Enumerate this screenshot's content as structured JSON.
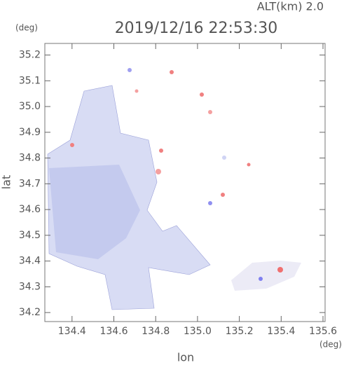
{
  "chart_data": {
    "type": "map",
    "title": "2019/12/16 22:53:30",
    "subtitle": "ALT(km) 2.0",
    "x_label": "lon",
    "y_label": "lat",
    "x_unit": "(deg)",
    "y_unit": "(deg)",
    "xlim": [
      134.27,
      135.61
    ],
    "ylim": [
      34.165,
      35.245
    ],
    "xticks": [
      134.4,
      134.6,
      134.8,
      {
        "value": 135.0,
        "label": "135.0"
      },
      135.2,
      135.4,
      135.6
    ],
    "yticks": [
      34.2,
      34.3,
      34.4,
      34.5,
      34.6,
      34.7,
      34.8,
      34.9,
      {
        "value": 35.0,
        "label": "35.0"
      },
      35.1,
      35.2
    ]
  }
}
